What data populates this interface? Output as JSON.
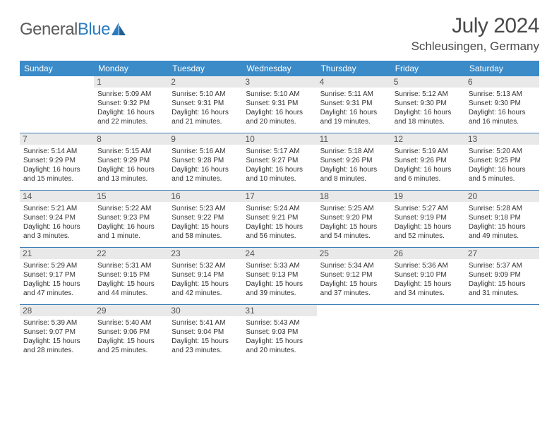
{
  "logo": {
    "t1": "General",
    "t2": "Blue"
  },
  "title": "July 2024",
  "location": "Schleusingen, Germany",
  "colors": {
    "header_bg": "#3b8bc8",
    "header_text": "#ffffff",
    "rule": "#3b7bb5",
    "daynum_bg": "#e9e9e9",
    "daynum_text": "#555555",
    "body_text": "#333333",
    "title_text": "#4a4a4a",
    "logo_gray": "#5a5a5a",
    "logo_blue": "#2b7bbf",
    "background": "#ffffff"
  },
  "typography": {
    "month_title_size": 30,
    "location_size": 17,
    "dow_size": 12,
    "daynum_size": 12,
    "info_size": 10
  },
  "dow": [
    "Sunday",
    "Monday",
    "Tuesday",
    "Wednesday",
    "Thursday",
    "Friday",
    "Saturday"
  ],
  "weeks": [
    [
      {
        "n": "",
        "l1": "",
        "l2": "",
        "l3": "",
        "l4": ""
      },
      {
        "n": "1",
        "l1": "Sunrise: 5:09 AM",
        "l2": "Sunset: 9:32 PM",
        "l3": "Daylight: 16 hours",
        "l4": "and 22 minutes."
      },
      {
        "n": "2",
        "l1": "Sunrise: 5:10 AM",
        "l2": "Sunset: 9:31 PM",
        "l3": "Daylight: 16 hours",
        "l4": "and 21 minutes."
      },
      {
        "n": "3",
        "l1": "Sunrise: 5:10 AM",
        "l2": "Sunset: 9:31 PM",
        "l3": "Daylight: 16 hours",
        "l4": "and 20 minutes."
      },
      {
        "n": "4",
        "l1": "Sunrise: 5:11 AM",
        "l2": "Sunset: 9:31 PM",
        "l3": "Daylight: 16 hours",
        "l4": "and 19 minutes."
      },
      {
        "n": "5",
        "l1": "Sunrise: 5:12 AM",
        "l2": "Sunset: 9:30 PM",
        "l3": "Daylight: 16 hours",
        "l4": "and 18 minutes."
      },
      {
        "n": "6",
        "l1": "Sunrise: 5:13 AM",
        "l2": "Sunset: 9:30 PM",
        "l3": "Daylight: 16 hours",
        "l4": "and 16 minutes."
      }
    ],
    [
      {
        "n": "7",
        "l1": "Sunrise: 5:14 AM",
        "l2": "Sunset: 9:29 PM",
        "l3": "Daylight: 16 hours",
        "l4": "and 15 minutes."
      },
      {
        "n": "8",
        "l1": "Sunrise: 5:15 AM",
        "l2": "Sunset: 9:29 PM",
        "l3": "Daylight: 16 hours",
        "l4": "and 13 minutes."
      },
      {
        "n": "9",
        "l1": "Sunrise: 5:16 AM",
        "l2": "Sunset: 9:28 PM",
        "l3": "Daylight: 16 hours",
        "l4": "and 12 minutes."
      },
      {
        "n": "10",
        "l1": "Sunrise: 5:17 AM",
        "l2": "Sunset: 9:27 PM",
        "l3": "Daylight: 16 hours",
        "l4": "and 10 minutes."
      },
      {
        "n": "11",
        "l1": "Sunrise: 5:18 AM",
        "l2": "Sunset: 9:26 PM",
        "l3": "Daylight: 16 hours",
        "l4": "and 8 minutes."
      },
      {
        "n": "12",
        "l1": "Sunrise: 5:19 AM",
        "l2": "Sunset: 9:26 PM",
        "l3": "Daylight: 16 hours",
        "l4": "and 6 minutes."
      },
      {
        "n": "13",
        "l1": "Sunrise: 5:20 AM",
        "l2": "Sunset: 9:25 PM",
        "l3": "Daylight: 16 hours",
        "l4": "and 5 minutes."
      }
    ],
    [
      {
        "n": "14",
        "l1": "Sunrise: 5:21 AM",
        "l2": "Sunset: 9:24 PM",
        "l3": "Daylight: 16 hours",
        "l4": "and 3 minutes."
      },
      {
        "n": "15",
        "l1": "Sunrise: 5:22 AM",
        "l2": "Sunset: 9:23 PM",
        "l3": "Daylight: 16 hours",
        "l4": "and 1 minute."
      },
      {
        "n": "16",
        "l1": "Sunrise: 5:23 AM",
        "l2": "Sunset: 9:22 PM",
        "l3": "Daylight: 15 hours",
        "l4": "and 58 minutes."
      },
      {
        "n": "17",
        "l1": "Sunrise: 5:24 AM",
        "l2": "Sunset: 9:21 PM",
        "l3": "Daylight: 15 hours",
        "l4": "and 56 minutes."
      },
      {
        "n": "18",
        "l1": "Sunrise: 5:25 AM",
        "l2": "Sunset: 9:20 PM",
        "l3": "Daylight: 15 hours",
        "l4": "and 54 minutes."
      },
      {
        "n": "19",
        "l1": "Sunrise: 5:27 AM",
        "l2": "Sunset: 9:19 PM",
        "l3": "Daylight: 15 hours",
        "l4": "and 52 minutes."
      },
      {
        "n": "20",
        "l1": "Sunrise: 5:28 AM",
        "l2": "Sunset: 9:18 PM",
        "l3": "Daylight: 15 hours",
        "l4": "and 49 minutes."
      }
    ],
    [
      {
        "n": "21",
        "l1": "Sunrise: 5:29 AM",
        "l2": "Sunset: 9:17 PM",
        "l3": "Daylight: 15 hours",
        "l4": "and 47 minutes."
      },
      {
        "n": "22",
        "l1": "Sunrise: 5:31 AM",
        "l2": "Sunset: 9:15 PM",
        "l3": "Daylight: 15 hours",
        "l4": "and 44 minutes."
      },
      {
        "n": "23",
        "l1": "Sunrise: 5:32 AM",
        "l2": "Sunset: 9:14 PM",
        "l3": "Daylight: 15 hours",
        "l4": "and 42 minutes."
      },
      {
        "n": "24",
        "l1": "Sunrise: 5:33 AM",
        "l2": "Sunset: 9:13 PM",
        "l3": "Daylight: 15 hours",
        "l4": "and 39 minutes."
      },
      {
        "n": "25",
        "l1": "Sunrise: 5:34 AM",
        "l2": "Sunset: 9:12 PM",
        "l3": "Daylight: 15 hours",
        "l4": "and 37 minutes."
      },
      {
        "n": "26",
        "l1": "Sunrise: 5:36 AM",
        "l2": "Sunset: 9:10 PM",
        "l3": "Daylight: 15 hours",
        "l4": "and 34 minutes."
      },
      {
        "n": "27",
        "l1": "Sunrise: 5:37 AM",
        "l2": "Sunset: 9:09 PM",
        "l3": "Daylight: 15 hours",
        "l4": "and 31 minutes."
      }
    ],
    [
      {
        "n": "28",
        "l1": "Sunrise: 5:39 AM",
        "l2": "Sunset: 9:07 PM",
        "l3": "Daylight: 15 hours",
        "l4": "and 28 minutes."
      },
      {
        "n": "29",
        "l1": "Sunrise: 5:40 AM",
        "l2": "Sunset: 9:06 PM",
        "l3": "Daylight: 15 hours",
        "l4": "and 25 minutes."
      },
      {
        "n": "30",
        "l1": "Sunrise: 5:41 AM",
        "l2": "Sunset: 9:04 PM",
        "l3": "Daylight: 15 hours",
        "l4": "and 23 minutes."
      },
      {
        "n": "31",
        "l1": "Sunrise: 5:43 AM",
        "l2": "Sunset: 9:03 PM",
        "l3": "Daylight: 15 hours",
        "l4": "and 20 minutes."
      },
      {
        "n": "",
        "l1": "",
        "l2": "",
        "l3": "",
        "l4": ""
      },
      {
        "n": "",
        "l1": "",
        "l2": "",
        "l3": "",
        "l4": ""
      },
      {
        "n": "",
        "l1": "",
        "l2": "",
        "l3": "",
        "l4": ""
      }
    ]
  ]
}
